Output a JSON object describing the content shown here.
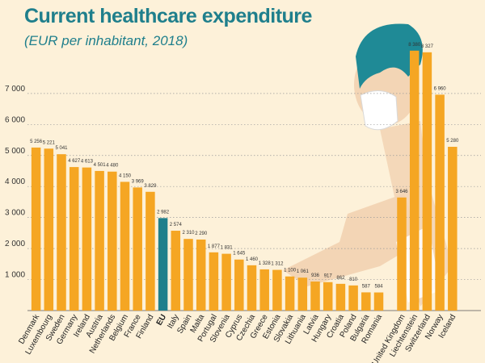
{
  "colors": {
    "background": "#fdf1d9",
    "title": "#1f7f8c",
    "bar": "#f5a623",
    "highlight": "#1f7f8c",
    "grid": "#9a9a9a",
    "skin": "#f3d5b5",
    "hair": "#1f8a96",
    "mask": "#ffffff"
  },
  "chart_data": {
    "type": "bar",
    "title": "Current healthcare expenditure",
    "subtitle": "(EUR per inhabitant, 2018)",
    "xlabel": "",
    "ylabel": "",
    "ylim": [
      0,
      8400
    ],
    "yticks": [
      1000,
      2000,
      3000,
      4000,
      5000,
      6000,
      7000
    ],
    "ytick_labels": [
      "1 000",
      "2 000",
      "3 000",
      "4 000",
      "5 000",
      "6 000",
      "7 000"
    ],
    "highlight_category": "EU",
    "categories": [
      "Denmark",
      "Luxembourg",
      "Sweden",
      "Germany",
      "Ireland",
      "Austria",
      "Netherlands",
      "Belgium",
      "France",
      "Finland",
      "EU",
      "Italy",
      "Spain",
      "Malta",
      "Portugal",
      "Slovenia",
      "Cyprus",
      "Czechia",
      "Greece",
      "Estonia",
      "Slovakia",
      "Lithuania",
      "Latvia",
      "Hungary",
      "Croatia",
      "Poland",
      "Bulgaria",
      "Romania",
      "United Kingdom",
      "Liechtenstein",
      "Switzerland",
      "Norway",
      "Iceland"
    ],
    "values": [
      5256,
      5221,
      5041,
      4627,
      4613,
      4501,
      4480,
      4150,
      3969,
      3829,
      2982,
      2574,
      2310,
      2290,
      1877,
      1831,
      1645,
      1460,
      1328,
      1312,
      1100,
      1061,
      936,
      917,
      862,
      810,
      587,
      584,
      3646,
      8380,
      8327,
      6960,
      5280
    ],
    "value_labels": [
      "5 256",
      "5 221",
      "5 041",
      "4 627",
      "4 613",
      "4 501",
      "4 480",
      "4 150",
      "3 969",
      "3 829",
      "2 982",
      "2 574",
      "2 310",
      "2 290",
      "1 877",
      "1 831",
      "1 645",
      "1 460",
      "1 328",
      "1 312",
      "1 100",
      "1 061",
      "936",
      "917",
      "862",
      "810",
      "587",
      "584",
      "3 646",
      "8 380",
      "8 327",
      "6 960",
      "5 280"
    ],
    "display_categories": [
      "Denmark",
      "Luxembourg",
      "Sweden",
      "Germany",
      "Ireland",
      "Austria",
      "Netherlands",
      "Belgium",
      "France",
      "Finland",
      "EU",
      "Italy",
      "Spain",
      "Malta",
      "Portugal",
      "Slovenia",
      "Cyprus",
      "Czechia",
      "Greece",
      "Estonia",
      "Slovakia",
      "Lithuania",
      "Latvia",
      "Hungary",
      "Croatia",
      "Poland",
      "Bulgaria",
      "Romania",
      "United Kingdom",
      "Liechtenstein",
      "Switzerland",
      "Norway",
      "Iceland"
    ]
  }
}
